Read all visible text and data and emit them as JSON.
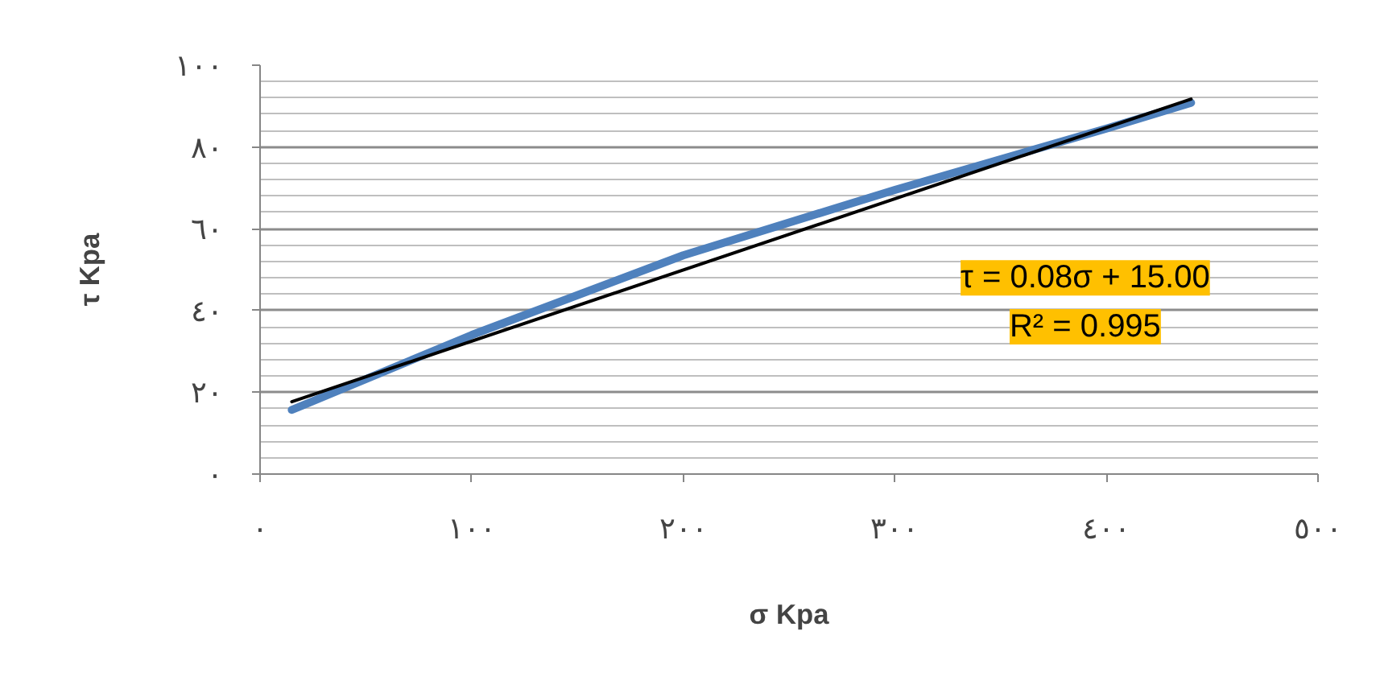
{
  "chart_data": {
    "type": "line",
    "xlabel": "σ Kpa",
    "ylabel": "τ Kpa",
    "xlim": [
      0,
      500
    ],
    "xticks": [
      {
        "value": 0,
        "label": "٠"
      },
      {
        "value": 100,
        "label": "١٠٠"
      },
      {
        "value": 200,
        "label": "٢٠٠"
      },
      {
        "value": 300,
        "label": "٣٠٠"
      },
      {
        "value": 400,
        "label": "٤٠٠"
      },
      {
        "value": 500,
        "label": "٥٠٠"
      }
    ],
    "ylim": [
      0,
      100
    ],
    "yticks": [
      {
        "value": 0,
        "label": "٠"
      },
      {
        "value": 4,
        "label": null
      },
      {
        "value": 8,
        "label": null
      },
      {
        "value": 12,
        "label": null
      },
      {
        "value": 16,
        "label": null
      },
      {
        "value": 20,
        "label": "٢٠"
      },
      {
        "value": 24,
        "label": null
      },
      {
        "value": 28,
        "label": null
      },
      {
        "value": 32,
        "label": null
      },
      {
        "value": 36,
        "label": null
      },
      {
        "value": 40,
        "label": "٤٠"
      },
      {
        "value": 44,
        "label": null
      },
      {
        "value": 48,
        "label": null
      },
      {
        "value": 52,
        "label": null
      },
      {
        "value": 56,
        "label": null
      },
      {
        "value": 60,
        "label": "٦٠"
      },
      {
        "value": 64,
        "label": null
      },
      {
        "value": 68,
        "label": null
      },
      {
        "value": 72,
        "label": null
      },
      {
        "value": 76,
        "label": null
      },
      {
        "value": 80,
        "label": "٨٠"
      },
      {
        "value": 84,
        "label": null
      },
      {
        "value": 88,
        "label": null
      },
      {
        "value": 92,
        "label": null
      },
      {
        "value": 96,
        "label": null
      },
      {
        "value": 100,
        "label": "١٠٠"
      }
    ],
    "grid": "y",
    "marker": "none",
    "line_style": "solid",
    "series": [
      {
        "color": "#4f81bd",
        "x": [
          15,
          100,
          200,
          300,
          400,
          440
        ],
        "values": [
          15.7,
          34,
          53.5,
          69.5,
          84.5,
          90.8
        ]
      },
      {
        "color": "#000000",
        "x": [
          15,
          440
        ],
        "values": [
          17.7,
          91.7
        ]
      }
    ],
    "annotations": [
      "τ = 0.08σ + 15.00",
      "R² = 0.995"
    ]
  }
}
